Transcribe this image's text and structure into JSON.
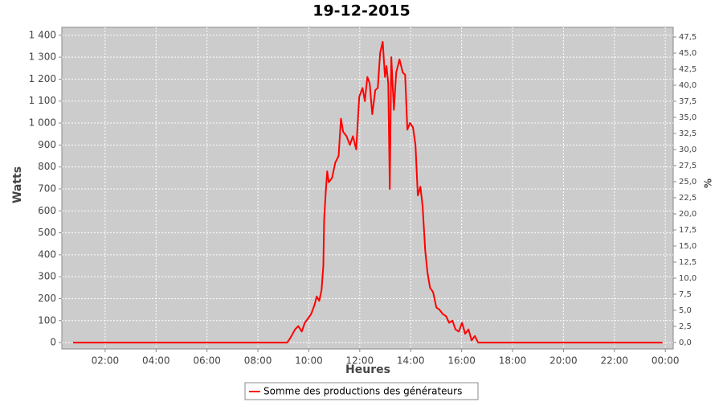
{
  "chart_data": {
    "type": "line",
    "title": "19-12-2015",
    "x_label": "Heures",
    "y_label": "Watts",
    "y2_label": "%",
    "x": [
      0.74,
      9.15,
      9.27,
      9.46,
      9.59,
      9.72,
      9.84,
      9.97,
      10.09,
      10.22,
      10.31,
      10.41,
      10.5,
      10.57,
      10.6,
      10.66,
      10.72,
      10.78,
      10.91,
      11.04,
      11.17,
      11.26,
      11.35,
      11.48,
      11.61,
      11.73,
      11.86,
      11.98,
      12.11,
      12.2,
      12.3,
      12.39,
      12.49,
      12.61,
      12.71,
      12.8,
      12.9,
      12.99,
      13.05,
      13.12,
      13.18,
      13.24,
      13.34,
      13.43,
      13.56,
      13.69,
      13.78,
      13.87,
      13.97,
      14.09,
      14.19,
      14.28,
      14.38,
      14.47,
      14.57,
      14.66,
      14.76,
      14.88,
      15.01,
      15.13,
      15.26,
      15.39,
      15.51,
      15.64,
      15.76,
      15.89,
      16.02,
      16.14,
      16.27,
      16.39,
      16.52,
      16.65,
      23.89
    ],
    "series": [
      {
        "name": "Somme des productions des  générateurs",
        "color": "#ff0000",
        "values": [
          0,
          0,
          20,
          60,
          75,
          50,
          90,
          110,
          130,
          170,
          210,
          190,
          240,
          350,
          560,
          680,
          780,
          730,
          750,
          820,
          850,
          1020,
          960,
          940,
          900,
          940,
          880,
          1120,
          1160,
          1100,
          1210,
          1180,
          1040,
          1150,
          1160,
          1320,
          1370,
          1210,
          1260,
          1180,
          700,
          1300,
          1060,
          1230,
          1290,
          1230,
          1220,
          970,
          1000,
          980,
          900,
          670,
          710,
          620,
          420,
          320,
          250,
          230,
          160,
          150,
          130,
          120,
          90,
          100,
          60,
          50,
          90,
          40,
          60,
          10,
          30,
          0,
          0
        ]
      }
    ],
    "xlim": [
      0.3,
      24.31
    ],
    "xticks": [
      {
        "value": 2,
        "label": "02:00"
      },
      {
        "value": 4,
        "label": "04:00"
      },
      {
        "value": 6,
        "label": "06:00"
      },
      {
        "value": 8,
        "label": "08:00"
      },
      {
        "value": 10,
        "label": "10:00"
      },
      {
        "value": 12,
        "label": "12:00"
      },
      {
        "value": 14,
        "label": "14:00"
      },
      {
        "value": 16,
        "label": "16:00"
      },
      {
        "value": 18,
        "label": "18:00"
      },
      {
        "value": 20,
        "label": "20:00"
      },
      {
        "value": 22,
        "label": "22:00"
      },
      {
        "value": 24,
        "label": "00:00"
      }
    ],
    "ylim": [
      -29,
      1436
    ],
    "yticks": [
      0,
      100,
      200,
      300,
      400,
      500,
      600,
      700,
      800,
      900,
      {
        "value": 1000,
        "label": "1 000"
      },
      {
        "value": 1100,
        "label": "1 100"
      },
      {
        "value": 1200,
        "label": "1 200"
      },
      {
        "value": 1300,
        "label": "1 300"
      },
      {
        "value": 1400,
        "label": "1 400"
      }
    ],
    "y2lim": [
      -1,
      49
    ],
    "y2ticks": [
      {
        "value": 0,
        "label": "0,0"
      },
      {
        "value": 2.5,
        "label": "2,5"
      },
      {
        "value": 5,
        "label": "5,0"
      },
      {
        "value": 7.5,
        "label": "7,5"
      },
      {
        "value": 10,
        "label": "10,0"
      },
      {
        "value": 12.5,
        "label": "12,5"
      },
      {
        "value": 15,
        "label": "15,0"
      },
      {
        "value": 17.5,
        "label": "17,5"
      },
      {
        "value": 20,
        "label": "20,0"
      },
      {
        "value": 22.5,
        "label": "22,5"
      },
      {
        "value": 25,
        "label": "25,0"
      },
      {
        "value": 27.5,
        "label": "27,5"
      },
      {
        "value": 30,
        "label": "30,0"
      },
      {
        "value": 32.5,
        "label": "32,5"
      },
      {
        "value": 35,
        "label": "35,0"
      },
      {
        "value": 37.5,
        "label": "37,5"
      },
      {
        "value": 40,
        "label": "40,0"
      },
      {
        "value": 42.5,
        "label": "42,5"
      },
      {
        "value": 45,
        "label": "45,0"
      },
      {
        "value": 47.5,
        "label": "47,5"
      }
    ],
    "grid": true,
    "legend": "bottom"
  }
}
